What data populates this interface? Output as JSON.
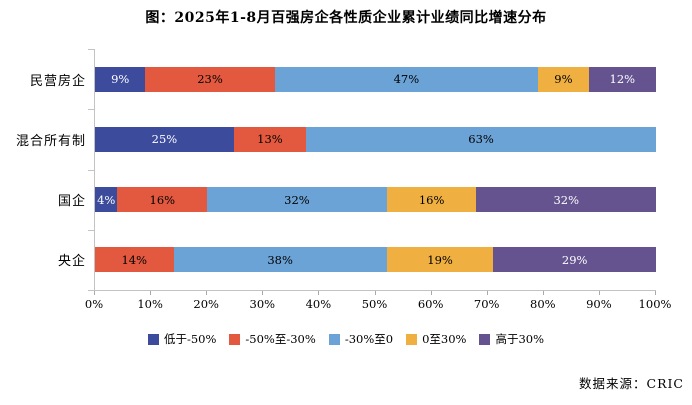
{
  "title": "图：2025年1-8月百强房企各性质企业累计业绩同比增速分布",
  "source": "数据来源：CRIC",
  "chart_data": {
    "type": "bar",
    "subtype": "horizontal-stacked-100",
    "title": "图：2025年1-8月百强房企各性质企业累计业绩同比增速分布",
    "categories": [
      "民营房企",
      "混合所有制",
      "国企",
      "央企"
    ],
    "series": [
      {
        "name": "低于-50%",
        "color": "#3c4b9c",
        "text_color": "#ffffff",
        "values": [
          9,
          25,
          4,
          0
        ]
      },
      {
        "name": "-50%至-30%",
        "color": "#e2593f",
        "text_color": "#000000",
        "values": [
          23,
          13,
          16,
          14
        ]
      },
      {
        "name": "-30%至0",
        "color": "#6ca3d7",
        "text_color": "#000000",
        "values": [
          47,
          63,
          32,
          38
        ]
      },
      {
        "name": "0至30%",
        "color": "#efaf41",
        "text_color": "#000000",
        "values": [
          9,
          0,
          16,
          19
        ]
      },
      {
        "name": "高于30%",
        "color": "#655390",
        "text_color": "#ffffff",
        "values": [
          12,
          0,
          32,
          29
        ]
      }
    ],
    "value_suffix": "%",
    "x_ticks": [
      "0%",
      "10%",
      "20%",
      "30%",
      "40%",
      "50%",
      "60%",
      "70%",
      "80%",
      "90%",
      "100%"
    ],
    "xlim": [
      0,
      100
    ],
    "grid": false,
    "legend_position": "bottom",
    "axis_line_color": "#c3c3c3"
  }
}
